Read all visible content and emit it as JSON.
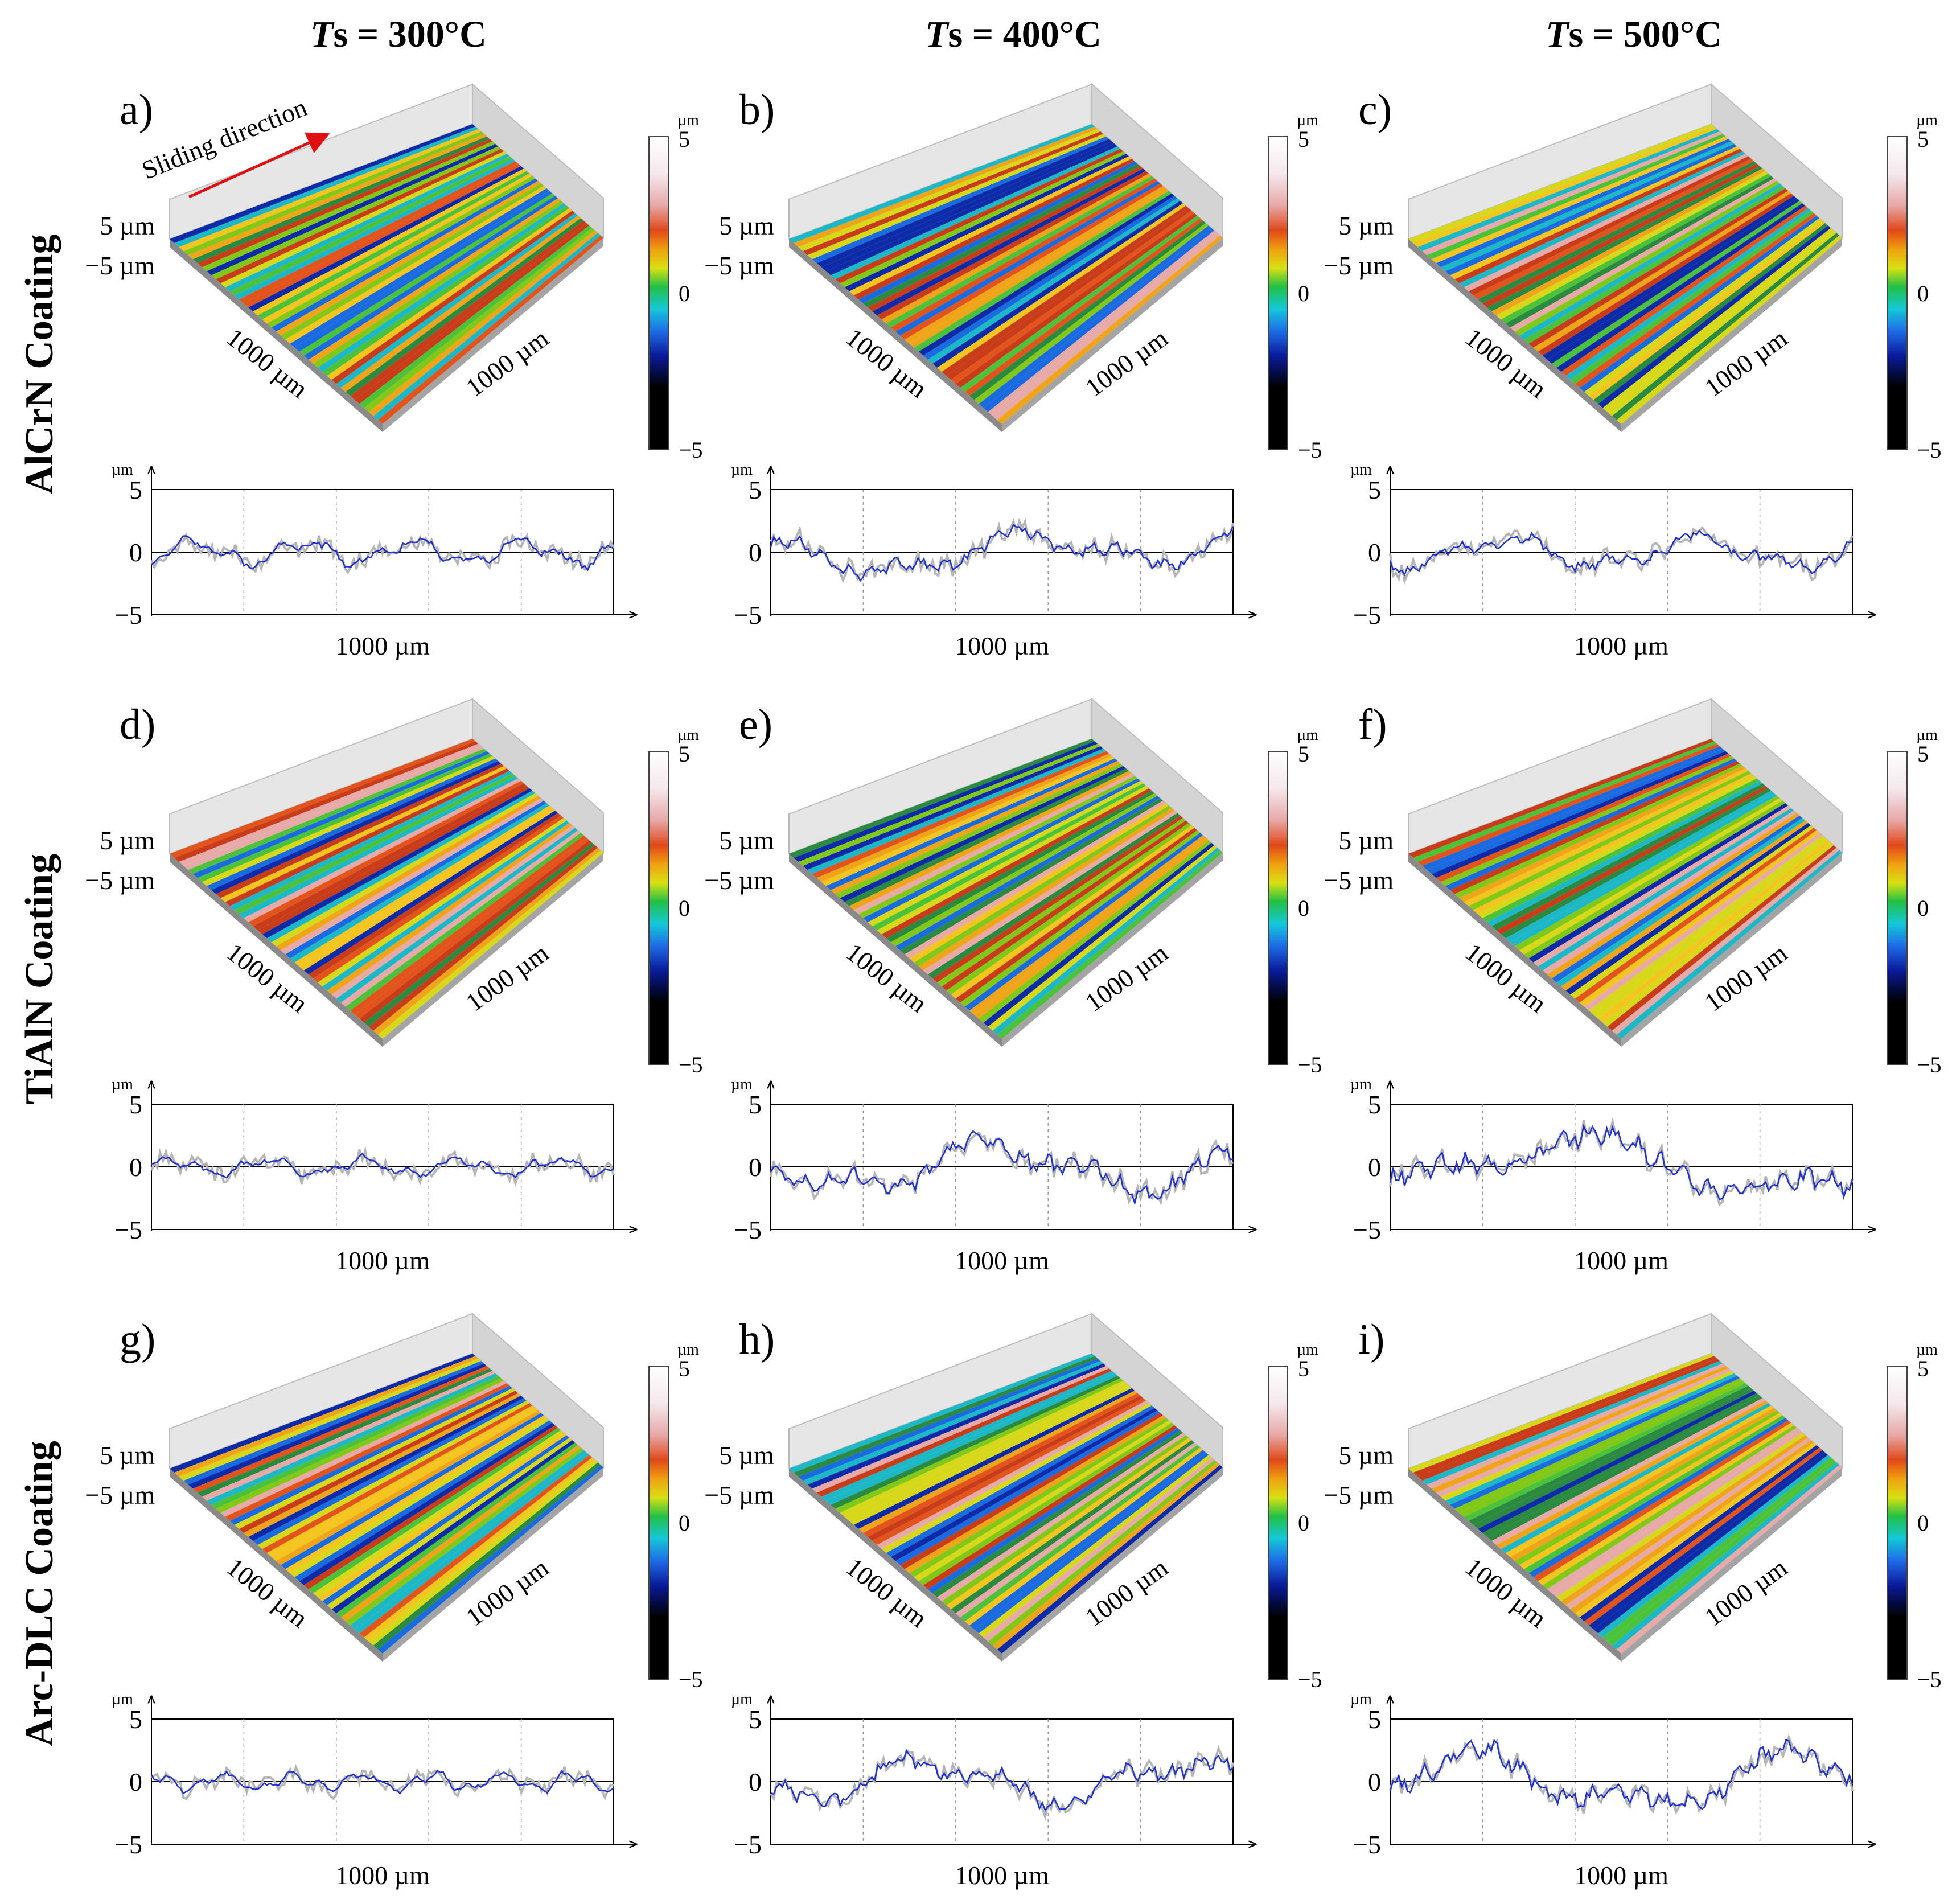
{
  "columns": [
    {
      "ts_symbol": "T",
      "ts_sub": "s",
      "label": " = 300°C"
    },
    {
      "ts_symbol": "T",
      "ts_sub": "s",
      "label": " = 400°C"
    },
    {
      "ts_symbol": "T",
      "ts_sub": "s",
      "label": " = 500°C"
    }
  ],
  "rows": [
    "AlCrN Coating",
    "TiAlN Coating",
    "Arc-DLC Coating"
  ],
  "annotation": {
    "text": "Sliding direction",
    "color": "#e01010"
  },
  "surface_axis": {
    "z_top": "5 µm",
    "z_bottom": "−5 µm",
    "x_label": "1000 µm",
    "y_label": "1000 µm"
  },
  "colorbar": {
    "unit": "µm",
    "max": "5",
    "mid": "0",
    "min": "−5"
  },
  "profile_axis": {
    "unit": "µm",
    "y_ticks": [
      "5",
      "0",
      "−5"
    ],
    "x_label": "1000 µm"
  },
  "palette": {
    "line": "#2233cc",
    "raw": "#b5b5b5",
    "arrow": "#e01010"
  },
  "panels": [
    {
      "label": "a)",
      "rough": 1.3,
      "freq": 1.4,
      "trend": 0.0,
      "seed": 1
    },
    {
      "label": "b)",
      "rough": 2.0,
      "freq": 0.6,
      "trend": 0.8,
      "seed": 2
    },
    {
      "label": "c)",
      "rough": 1.7,
      "freq": 0.8,
      "trend": 0.0,
      "seed": 3
    },
    {
      "label": "d)",
      "rough": 0.9,
      "freq": 1.6,
      "trend": 0.0,
      "seed": 4
    },
    {
      "label": "e)",
      "rough": 2.7,
      "freq": 0.55,
      "trend": 0.0,
      "seed": 5
    },
    {
      "label": "f)",
      "rough": 3.2,
      "freq": 0.35,
      "trend": 0.0,
      "seed": 6
    },
    {
      "label": "g)",
      "rough": 0.9,
      "freq": 2.2,
      "trend": 0.0,
      "seed": 7
    },
    {
      "label": "h)",
      "rough": 2.4,
      "freq": 0.6,
      "trend": 0.0,
      "seed": 8
    },
    {
      "label": "i)",
      "rough": 3.0,
      "freq": 0.45,
      "trend": 0.0,
      "seed": 9
    }
  ]
}
